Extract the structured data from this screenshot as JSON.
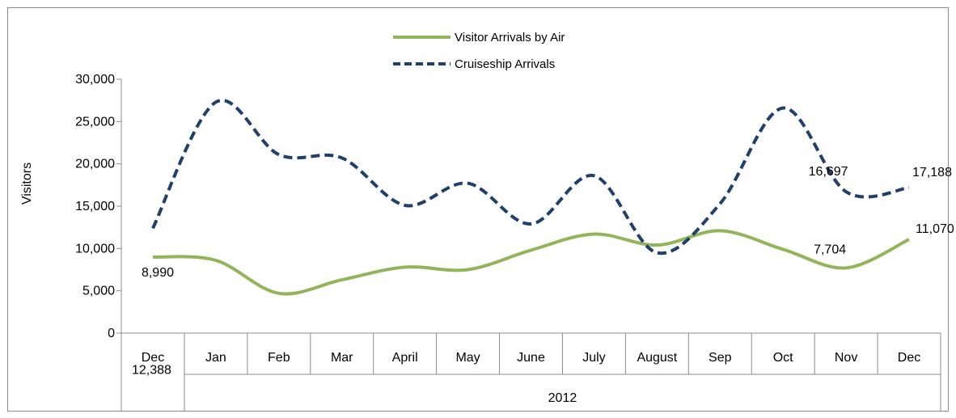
{
  "chart_data": {
    "type": "line",
    "ylabel": "Visitors",
    "ylim": [
      0,
      30000
    ],
    "yticks": [
      0,
      5000,
      10000,
      15000,
      20000,
      25000,
      30000
    ],
    "ytick_labels": [
      "0",
      "5,000",
      "10,000",
      "15,000",
      "20,000",
      "25,000",
      "30,000"
    ],
    "categories": [
      "Dec",
      "Jan",
      "Feb",
      "Mar",
      "April",
      "May",
      "June",
      "July",
      "August",
      "Sep",
      "Oct",
      "Nov",
      "Dec"
    ],
    "year_label": "2012",
    "legend_position": "top",
    "smooth": true,
    "series": [
      {
        "name": "Visitor Arrivals by Air",
        "color": "#93b55a",
        "style": "solid",
        "values": [
          8990,
          8600,
          4700,
          6300,
          7800,
          7500,
          9800,
          11700,
          10400,
          12100,
          9900,
          7704,
          11070
        ],
        "data_labels": {
          "0": "8,990",
          "11": "7,704",
          "12": "11,070"
        }
      },
      {
        "name": "Cruiseship Arrivals",
        "color": "#1f3f6e",
        "style": "dashed",
        "values": [
          12388,
          27300,
          21100,
          20700,
          15100,
          17700,
          12900,
          18600,
          9500,
          15300,
          26600,
          16697,
          17188
        ],
        "data_labels": {
          "0": "12,388",
          "11": "16,697",
          "12": "17,188"
        }
      }
    ]
  }
}
